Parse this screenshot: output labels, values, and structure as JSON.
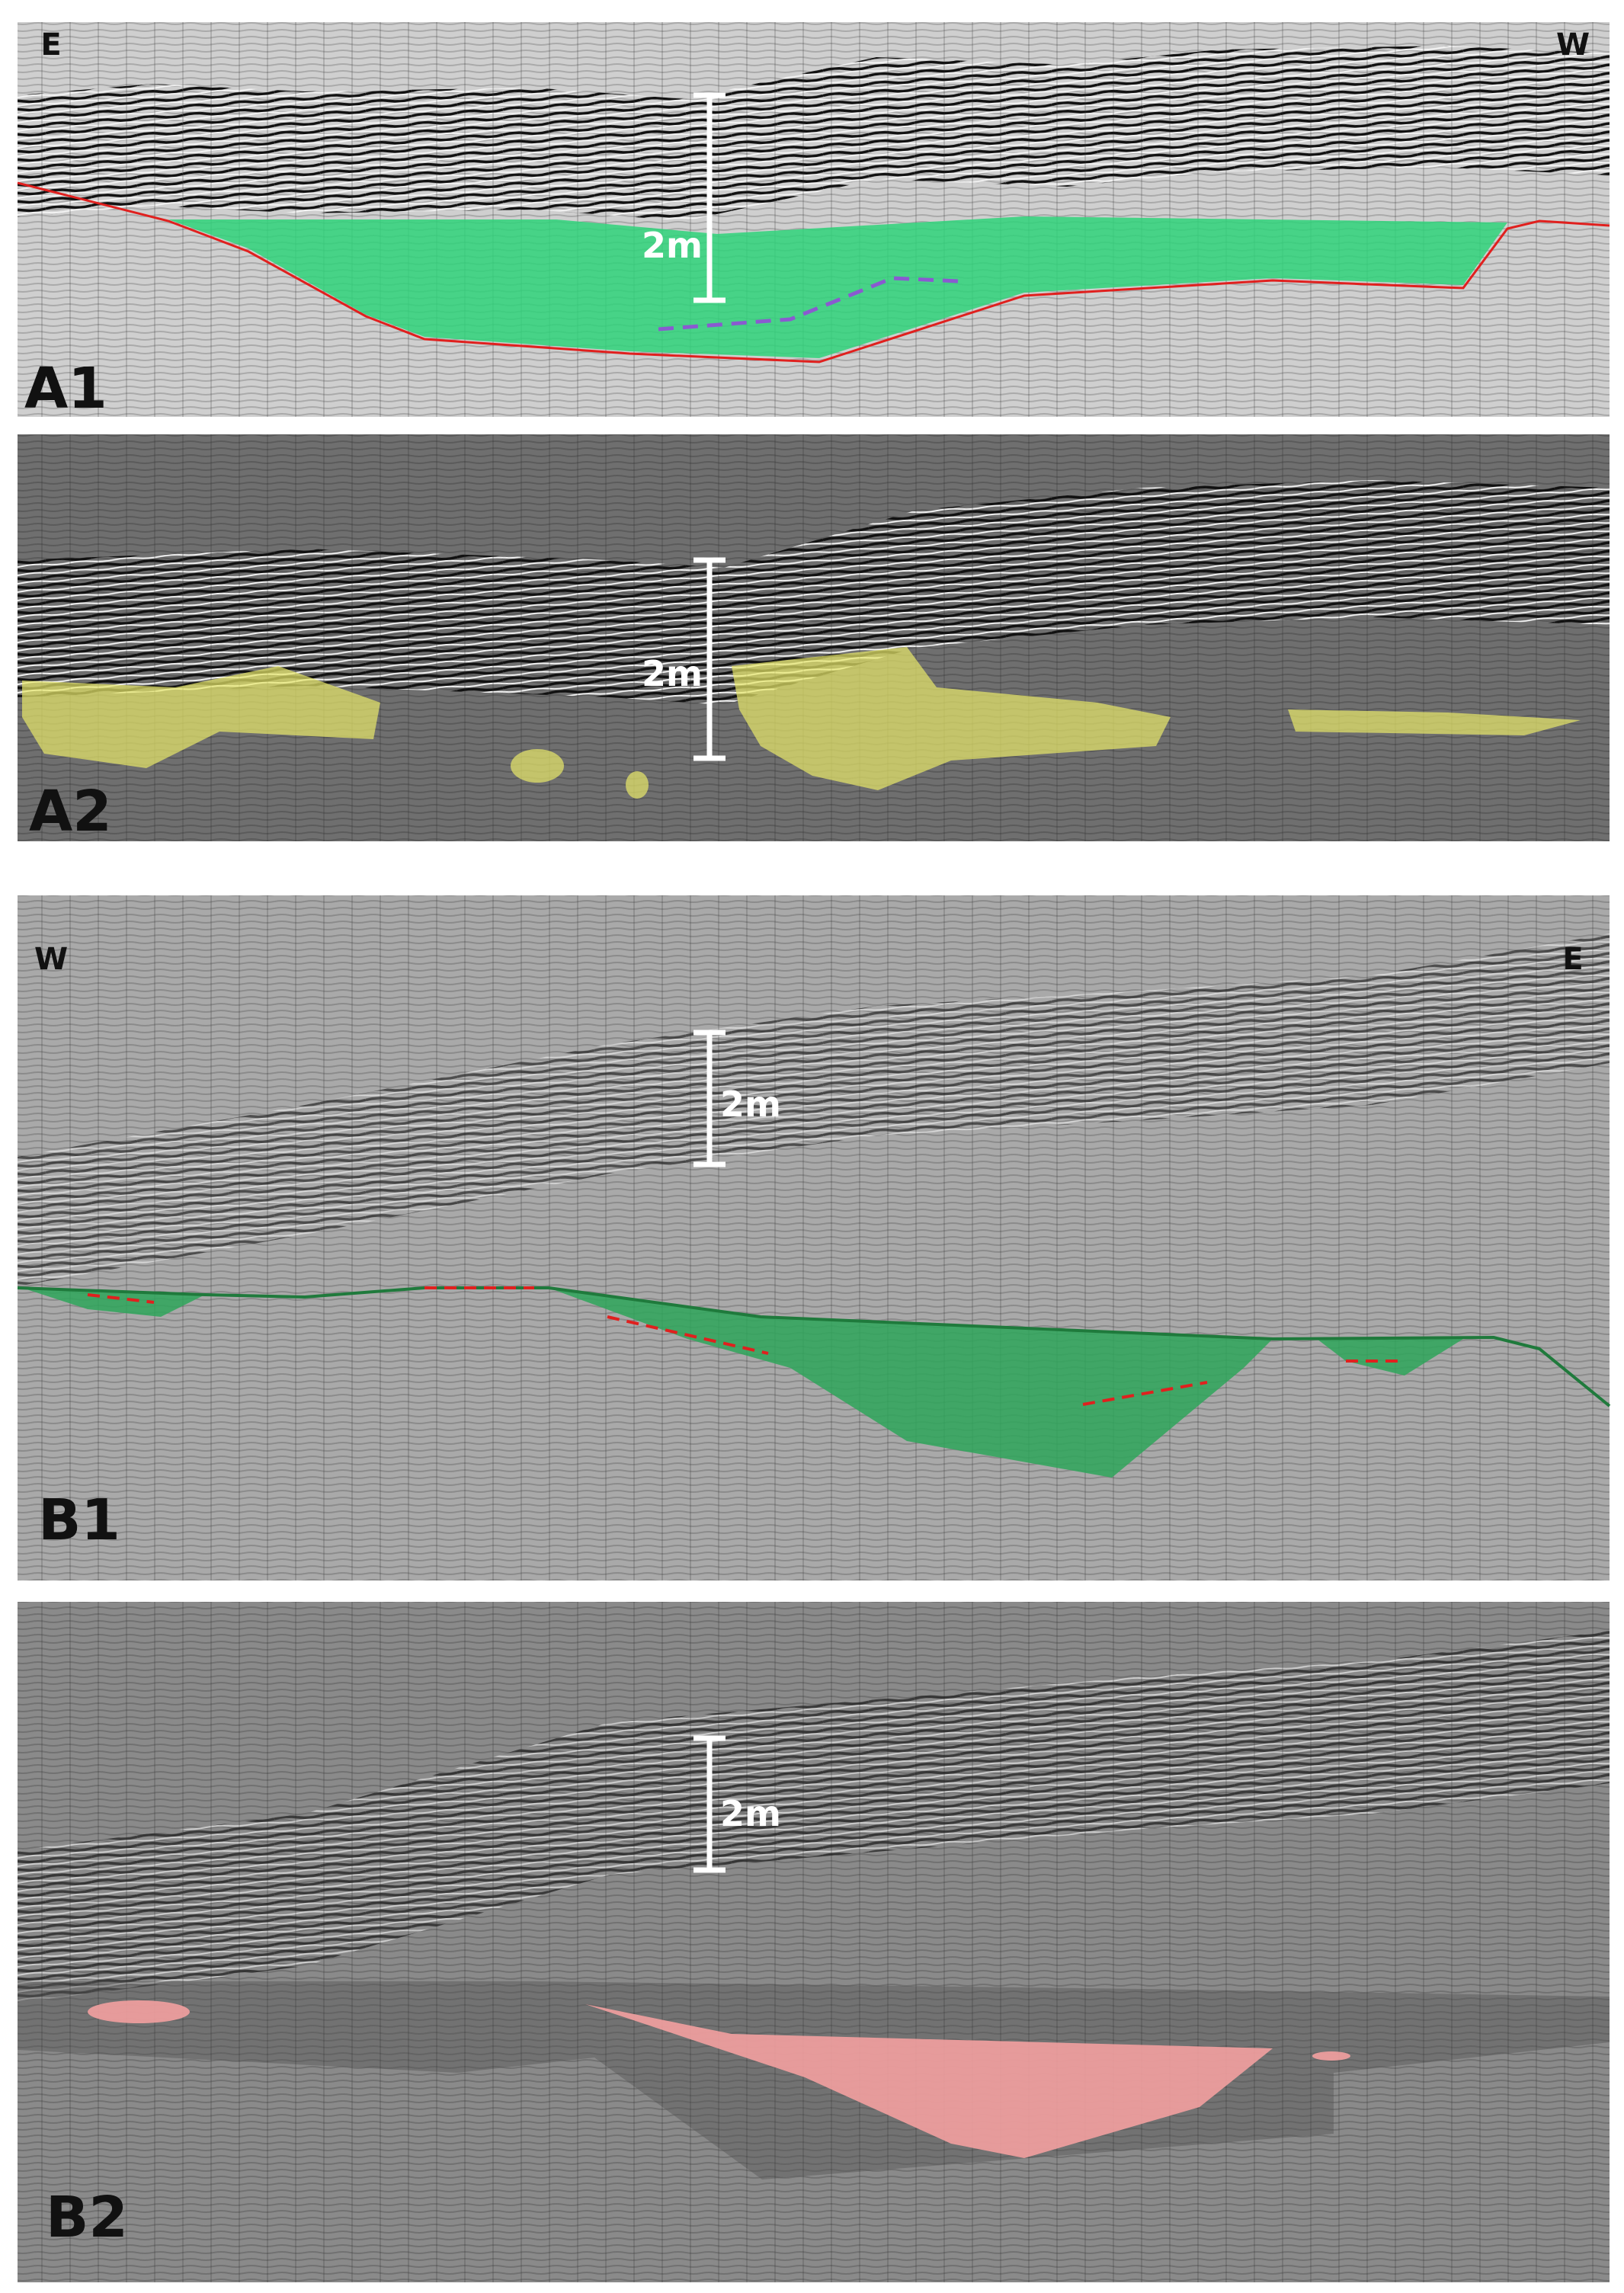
{
  "panels": [
    {
      "label": "A1",
      "left": "E",
      "right": "W",
      "scale": "2m"
    },
    {
      "label": "A2",
      "scale": "2m"
    },
    {
      "label": "B1",
      "left": "W",
      "right": "E",
      "scale": "2m"
    },
    {
      "label": "B2",
      "scale": "2m"
    }
  ]
}
